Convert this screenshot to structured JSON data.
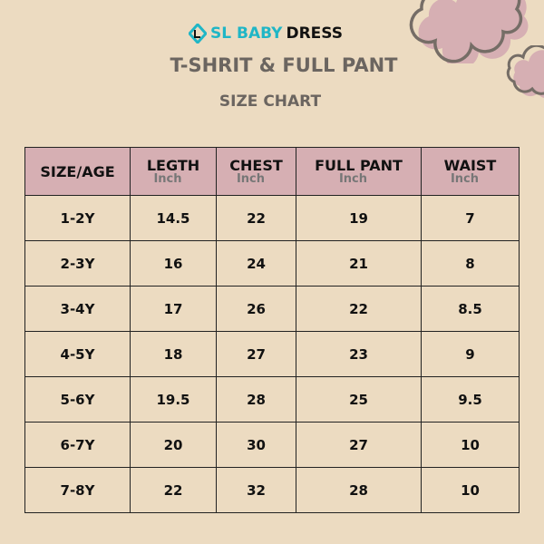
{
  "brand": {
    "part1": "SL BABY",
    "part2": "DRESS",
    "icon": "logo-diamond-icon"
  },
  "title": "T-SHRIT & FULL PANT",
  "subtitle": "SIZE CHART",
  "colors": {
    "background": "#ecdbc1",
    "header": "#d6afb3",
    "brand_accent": "#1fb6c6",
    "cloud": "#d6afb3"
  },
  "table": {
    "headers": [
      {
        "label": "SIZE/AGE",
        "unit": ""
      },
      {
        "label": "LEGTH",
        "unit": "Inch"
      },
      {
        "label": "CHEST",
        "unit": "Inch"
      },
      {
        "label": "FULL PANT",
        "unit": "Inch"
      },
      {
        "label": "WAIST",
        "unit": "Inch"
      }
    ],
    "rows": [
      [
        "1-2Y",
        "14.5",
        "22",
        "19",
        "7"
      ],
      [
        "2-3Y",
        "16",
        "24",
        "21",
        "8"
      ],
      [
        "3-4Y",
        "17",
        "26",
        "22",
        "8.5"
      ],
      [
        "4-5Y",
        "18",
        "27",
        "23",
        "9"
      ],
      [
        "5-6Y",
        "19.5",
        "28",
        "25",
        "9.5"
      ],
      [
        "6-7Y",
        "20",
        "30",
        "27",
        "10"
      ],
      [
        "7-8Y",
        "22",
        "32",
        "28",
        "10"
      ]
    ]
  }
}
